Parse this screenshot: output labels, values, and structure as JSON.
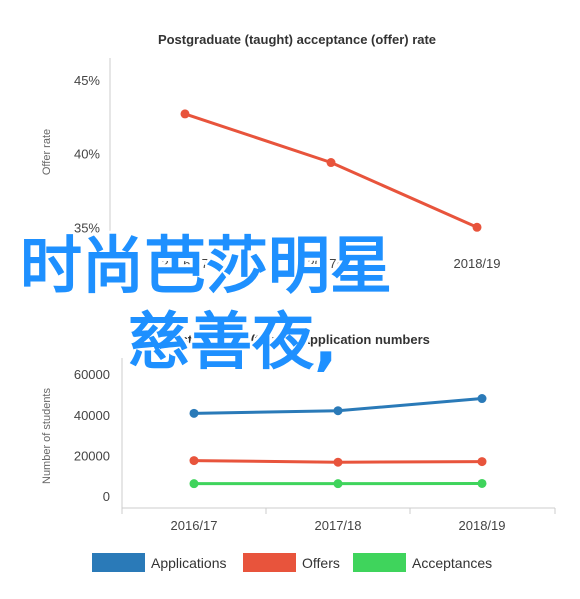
{
  "chart_data": [
    {
      "type": "line",
      "title": "Postgraduate (taught) acceptance (offer) rate",
      "ylabel": "Offer rate",
      "xlabel": "",
      "categories": [
        "2016/17",
        "2017/18",
        "2018/19"
      ],
      "y_ticks": [
        "35%",
        "40%",
        "45%"
      ],
      "ylim": [
        34,
        46.5
      ],
      "grid": false,
      "series": [
        {
          "values": [
            42.7,
            39.4,
            35.0
          ],
          "color": "#e8543c"
        }
      ]
    },
    {
      "type": "line",
      "title": "Postgraduate (taught) application numbers",
      "ylabel": "Number of students",
      "xlabel": "",
      "categories": [
        "2016/17",
        "2017/18",
        "2018/19"
      ],
      "y_ticks": [
        "0",
        "20000",
        "40000",
        "60000"
      ],
      "ylim": [
        -6000,
        68000
      ],
      "grid": false,
      "legend_position": "bottom",
      "series": [
        {
          "name": "Applications",
          "values": [
            40700,
            42000,
            48000
          ],
          "color": "#2a7ab8"
        },
        {
          "name": "Offers",
          "values": [
            17400,
            16600,
            16900
          ],
          "color": "#e8543c"
        },
        {
          "name": "Acceptances",
          "values": [
            6000,
            6000,
            6100
          ],
          "color": "#3fd45c"
        }
      ]
    }
  ],
  "overlay": {
    "line1": "时尚芭莎明星",
    "line2": "慈善夜,",
    "color": "#1e90ff"
  }
}
